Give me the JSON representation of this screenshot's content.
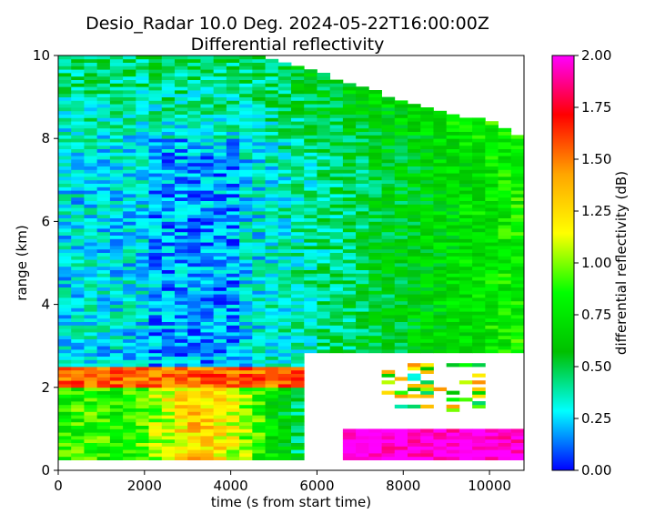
{
  "chart_data": {
    "type": "heatmap",
    "title": "Desio_Radar 10.0 Deg. 2024-05-22T16:00:00Z",
    "subtitle": "Differential reflectivity",
    "xlabel": "time (s from start time)",
    "ylabel": "range (km)",
    "xlim": [
      0,
      10800
    ],
    "ylim": [
      0,
      10
    ],
    "xticks": [
      0,
      2000,
      4000,
      6000,
      8000,
      10000
    ],
    "yticks": [
      0,
      2,
      4,
      6,
      8,
      10
    ],
    "grid": false,
    "colorbar": {
      "label": "differential reflectivity (dB)",
      "vmin": 0.0,
      "vmax": 2.0,
      "ticks": [
        "0.00",
        "0.25",
        "0.50",
        "0.75",
        "1.00",
        "1.25",
        "1.50",
        "1.75",
        "2.00"
      ],
      "colormap": [
        "#0000ff",
        "#00ffff",
        "#00c000",
        "#00ff00",
        "#ffff00",
        "#ffa500",
        "#ff0000",
        "#ff00ff"
      ]
    },
    "regions": [
      {
        "name": "upper layer",
        "x": [
          0,
          10800
        ],
        "y": [
          2.6,
          10.0
        ],
        "zdr_typical": [
          0.15,
          0.45
        ],
        "zdr_trend": "increasing with time toward 0.6-1.0 after 6000 s"
      },
      {
        "name": "bright band layer",
        "x": [
          0,
          5800
        ],
        "y": [
          2.0,
          2.5
        ],
        "zdr_typical": [
          1.4,
          1.7
        ]
      },
      {
        "name": "lower layer",
        "x": [
          0,
          5600
        ],
        "y": [
          0.25,
          2.0
        ],
        "zdr_typical": [
          0.7,
          1.4
        ],
        "zdr_peak": [
          2500,
          4000,
          1.4
        ]
      },
      {
        "name": "no data",
        "x": [
          5800,
          10800
        ],
        "y": [
          0.3,
          2.8
        ]
      },
      {
        "name": "low range strip",
        "x": [
          6600,
          10800
        ],
        "y": [
          0.2,
          1.0
        ],
        "zdr_typical": [
          1.8,
          2.0
        ]
      }
    ],
    "data_top_km": [
      [
        0,
        10.0
      ],
      [
        4500,
        10.0
      ],
      [
        6000,
        9.6
      ],
      [
        8000,
        8.9
      ],
      [
        10000,
        8.4
      ],
      [
        10800,
        8.0
      ]
    ]
  }
}
